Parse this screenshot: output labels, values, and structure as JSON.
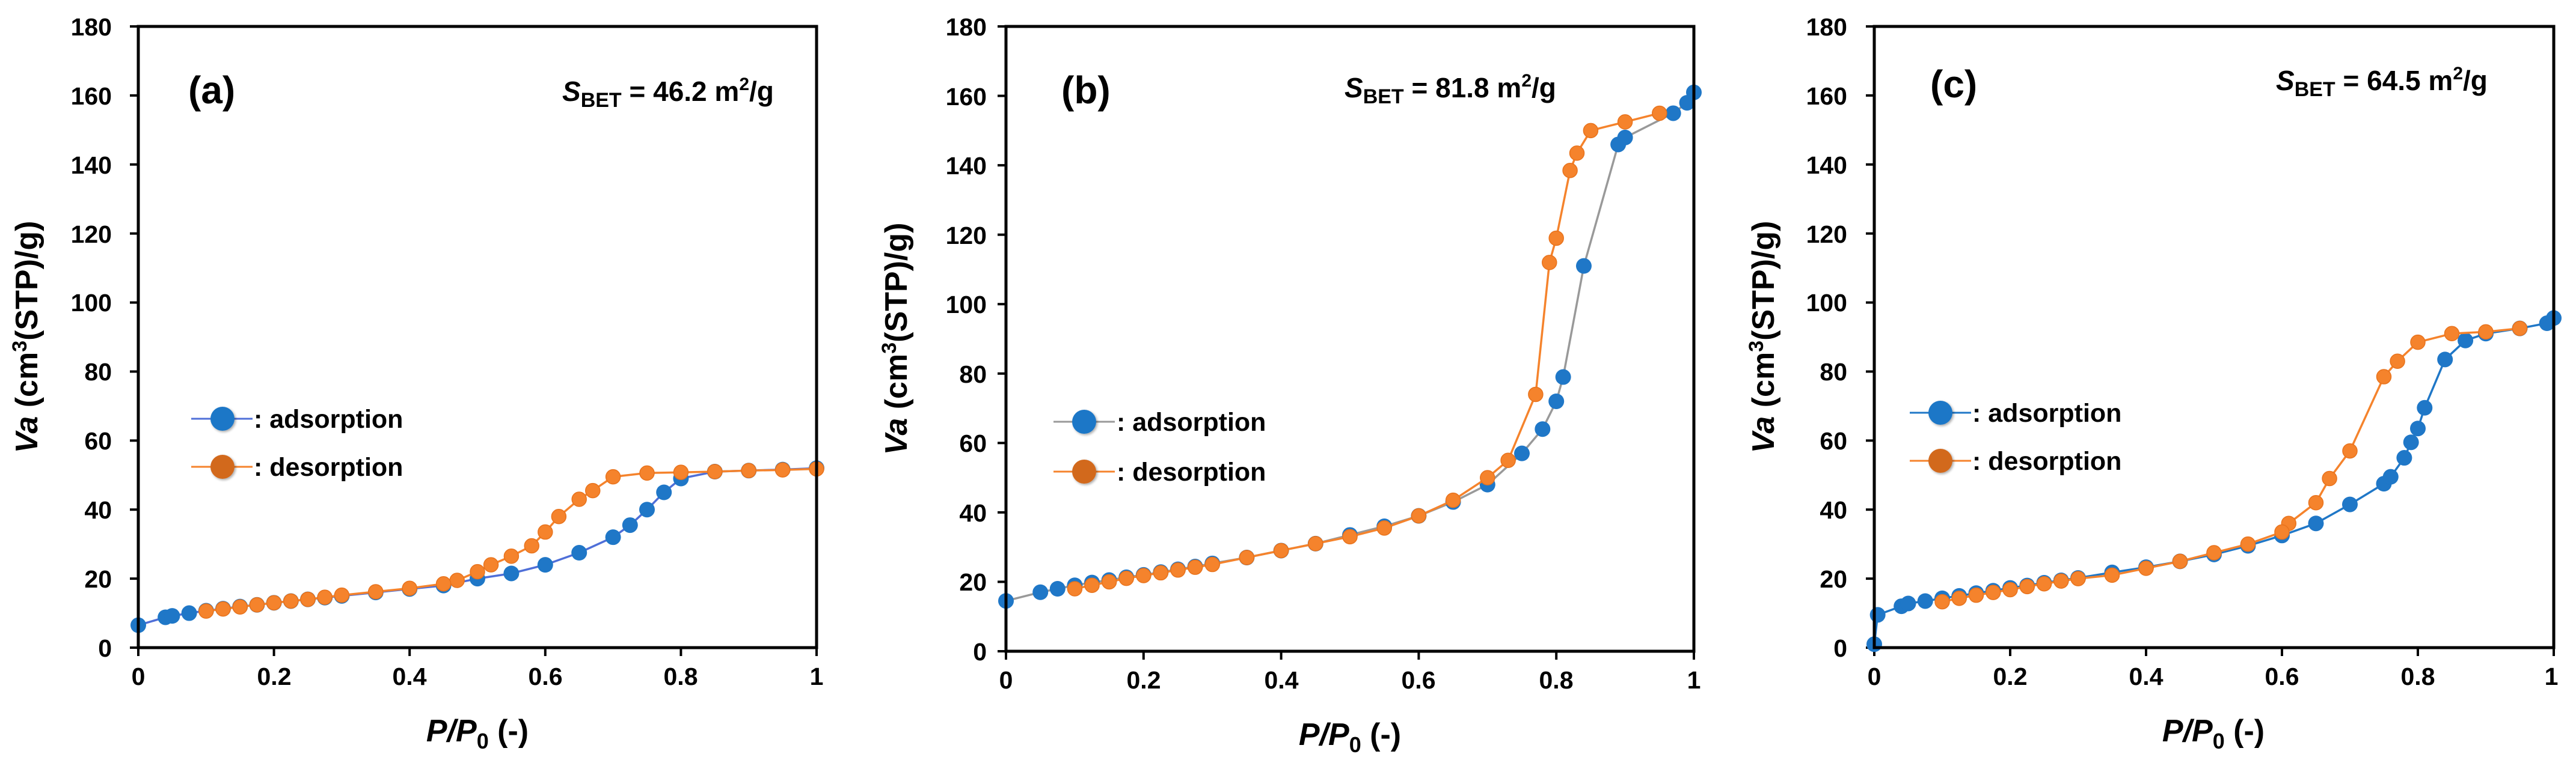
{
  "colors": {
    "adsorption_marker": "#1f77c7",
    "adsorption_line_a": "#4f6fd8",
    "adsorption_line_bc": "#999999",
    "desorption": "#f5832c",
    "desorption_marker_edge": "#e8731d",
    "axis": "#000000"
  },
  "chart_data": [
    {
      "type": "scatter",
      "panel_label": "(a)",
      "sbet": {
        "symbol": "S",
        "subscript": "BET",
        "text": " = 46.2 m",
        "sup": "2",
        "unit": "/g"
      },
      "xlabel": {
        "p": "P",
        "slash": "/",
        "p0": "P",
        "sub": "0",
        "unit": " (-)"
      },
      "ylabel": {
        "va": "Va",
        "text1": " (cm",
        "sup": "3",
        "text2": "(STP)/g)"
      },
      "xlim": [
        0,
        1
      ],
      "ylim": [
        0,
        180
      ],
      "xticks": [
        "0",
        "0.2",
        "0.4",
        "0.6",
        "0.8",
        "1"
      ],
      "yticks": [
        "0",
        "20",
        "40",
        "60",
        "80",
        "100",
        "120",
        "140",
        "160",
        "180"
      ],
      "legend": {
        "placement": "center-left",
        "adsorption": ": adsorption",
        "desorption": ": desorption"
      },
      "series": [
        {
          "name": "adsorption",
          "x": [
            0.0,
            0.04,
            0.05,
            0.075,
            0.1,
            0.125,
            0.15,
            0.175,
            0.2,
            0.225,
            0.25,
            0.275,
            0.3,
            0.35,
            0.4,
            0.45,
            0.5,
            0.55,
            0.6,
            0.65,
            0.7,
            0.725,
            0.75,
            0.775,
            0.8,
            0.85,
            0.9,
            0.95,
            1.0
          ],
          "y": [
            6.5,
            8.8,
            9.2,
            10.0,
            10.7,
            11.3,
            11.9,
            12.4,
            13.0,
            13.5,
            14.0,
            14.5,
            15.0,
            16.0,
            17.0,
            18.0,
            20.0,
            21.5,
            24.0,
            27.5,
            32.0,
            35.5,
            40.0,
            45.0,
            49.0,
            51.0,
            51.3,
            51.6,
            52.0
          ]
        },
        {
          "name": "desorption",
          "x": [
            1.0,
            0.95,
            0.9,
            0.85,
            0.8,
            0.75,
            0.7,
            0.67,
            0.65,
            0.62,
            0.6,
            0.58,
            0.55,
            0.52,
            0.5,
            0.47,
            0.45,
            0.4,
            0.35,
            0.3,
            0.275,
            0.25,
            0.225,
            0.2,
            0.175,
            0.15,
            0.125,
            0.1
          ],
          "y": [
            51.8,
            51.5,
            51.3,
            51.0,
            50.8,
            50.6,
            49.5,
            45.5,
            43.0,
            38.0,
            33.5,
            29.5,
            26.5,
            24.0,
            22.0,
            19.5,
            18.5,
            17.2,
            16.2,
            15.2,
            14.6,
            14.0,
            13.5,
            13.0,
            12.4,
            11.8,
            11.2,
            10.6
          ]
        }
      ]
    },
    {
      "type": "scatter",
      "panel_label": "(b)",
      "sbet": {
        "symbol": "S",
        "subscript": "BET",
        "text": " = 81.8 m",
        "sup": "2",
        "unit": "/g"
      },
      "xlabel": {
        "p": "P",
        "slash": "/",
        "p0": "P",
        "sub": "0",
        "unit": " (-)"
      },
      "ylabel": {
        "va": "Va",
        "text1": " (cm",
        "sup": "3",
        "text2": "(STP)/g)"
      },
      "xlim": [
        0,
        1
      ],
      "ylim": [
        0,
        180
      ],
      "xticks": [
        "0",
        "0.2",
        "0.4",
        "0.6",
        "0.8",
        "1"
      ],
      "yticks": [
        "0",
        "20",
        "40",
        "60",
        "80",
        "100",
        "120",
        "140",
        "160",
        "180"
      ],
      "legend": {
        "placement": "center-left",
        "adsorption": ": adsorption",
        "desorption": ": desorption"
      },
      "series": [
        {
          "name": "adsorption",
          "x": [
            0.0,
            0.05,
            0.075,
            0.1,
            0.125,
            0.15,
            0.175,
            0.2,
            0.225,
            0.25,
            0.275,
            0.3,
            0.35,
            0.4,
            0.45,
            0.5,
            0.55,
            0.6,
            0.65,
            0.7,
            0.75,
            0.78,
            0.8,
            0.81,
            0.84,
            0.89,
            0.9,
            0.97,
            0.99,
            1.0
          ],
          "y": [
            14.5,
            17.0,
            18.0,
            19.0,
            19.8,
            20.5,
            21.3,
            22.0,
            22.8,
            23.6,
            24.4,
            25.3,
            27.0,
            29.0,
            31.0,
            33.5,
            36.0,
            39.0,
            43.0,
            48.0,
            57.0,
            64.0,
            72.0,
            79.0,
            111.0,
            146.0,
            148.0,
            155.0,
            158.0,
            161.0
          ]
        },
        {
          "name": "desorption",
          "x": [
            0.95,
            0.9,
            0.85,
            0.83,
            0.82,
            0.8,
            0.79,
            0.77,
            0.73,
            0.7,
            0.65,
            0.6,
            0.55,
            0.5,
            0.45,
            0.4,
            0.35,
            0.3,
            0.275,
            0.25,
            0.225,
            0.2,
            0.175,
            0.15,
            0.125,
            0.1
          ],
          "y": [
            155.0,
            152.5,
            150.0,
            143.5,
            138.5,
            119.0,
            112.0,
            74.0,
            55.0,
            50.0,
            43.5,
            39.0,
            35.5,
            33.0,
            31.0,
            29.0,
            27.0,
            25.0,
            24.2,
            23.4,
            22.6,
            21.8,
            21.0,
            20.0,
            19.0,
            18.0
          ]
        }
      ]
    },
    {
      "type": "scatter",
      "panel_label": "(c)",
      "sbet": {
        "symbol": "S",
        "subscript": "BET",
        "text": " = 64.5 m",
        "sup": "2",
        "unit": "/g"
      },
      "xlabel": {
        "p": "P",
        "slash": "/",
        "p0": "P",
        "sub": "0",
        "unit": " (-)"
      },
      "ylabel": {
        "va": "Va",
        "text1": " (cm",
        "sup": "3",
        "text2": "(STP)/g)"
      },
      "xlim": [
        0,
        1
      ],
      "ylim": [
        0,
        180
      ],
      "xticks": [
        "0",
        "0.2",
        "0.4",
        "0.6",
        "0.8",
        "1"
      ],
      "yticks": [
        "0",
        "20",
        "40",
        "60",
        "80",
        "100",
        "120",
        "140",
        "160",
        "180"
      ],
      "legend": {
        "placement": "center-left",
        "adsorption": ": adsorption",
        "desorption": ": desorption"
      },
      "series": [
        {
          "name": "adsorption",
          "x": [
            0.0,
            0.005,
            0.04,
            0.05,
            0.075,
            0.1,
            0.125,
            0.15,
            0.175,
            0.2,
            0.225,
            0.25,
            0.275,
            0.3,
            0.35,
            0.4,
            0.45,
            0.5,
            0.55,
            0.6,
            0.65,
            0.7,
            0.75,
            0.76,
            0.78,
            0.79,
            0.8,
            0.81,
            0.84,
            0.87,
            0.9,
            0.95,
            0.99,
            1.0
          ],
          "y": [
            1.0,
            9.5,
            12.0,
            12.8,
            13.5,
            14.3,
            15.0,
            15.8,
            16.5,
            17.3,
            18.0,
            18.8,
            19.5,
            20.2,
            21.8,
            23.3,
            25.0,
            27.0,
            29.5,
            32.5,
            36.0,
            41.5,
            47.5,
            49.5,
            55.0,
            59.5,
            63.5,
            69.5,
            83.5,
            89.0,
            91.0,
            92.5,
            94.0,
            95.5
          ]
        },
        {
          "name": "desorption",
          "x": [
            0.95,
            0.9,
            0.85,
            0.8,
            0.77,
            0.75,
            0.7,
            0.67,
            0.65,
            0.61,
            0.6,
            0.55,
            0.5,
            0.45,
            0.4,
            0.35,
            0.3,
            0.275,
            0.25,
            0.225,
            0.2,
            0.175,
            0.15,
            0.125,
            0.1
          ],
          "y": [
            92.5,
            91.5,
            91.0,
            88.5,
            83.0,
            78.5,
            57.0,
            49.0,
            42.0,
            36.0,
            33.5,
            30.0,
            27.5,
            25.0,
            23.0,
            21.0,
            20.0,
            19.3,
            18.5,
            17.7,
            16.8,
            16.0,
            15.2,
            14.3,
            13.3
          ]
        }
      ]
    }
  ]
}
